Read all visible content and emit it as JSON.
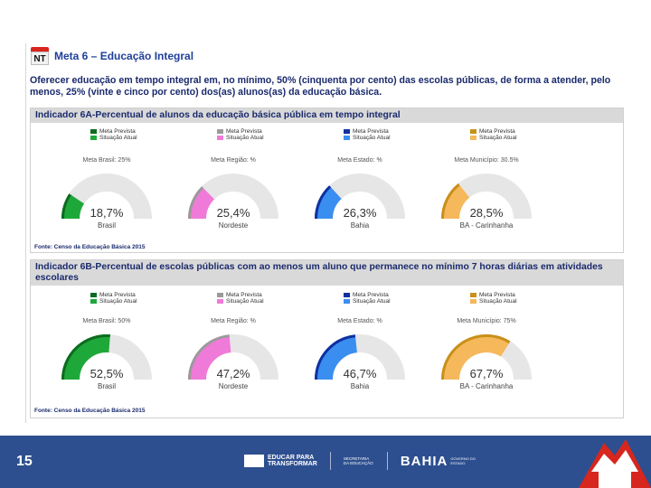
{
  "slide": {
    "logo_text": "NT",
    "title": "Meta 6 – Educação Integral",
    "goal_text": "Oferecer educação em tempo integral em, no mínimo, 50% (cinquenta por cento) das escolas públicas, de forma a atender, pelo menos, 25% (vinte e cinco por cento) dos(as) alunos(as) da educação básica."
  },
  "legend_labels": {
    "meta": "Meta Prevista",
    "situacao": "Situação Atual"
  },
  "indicator_a": {
    "title": "Indicador 6A-Percentual de alunos da educação básica pública em tempo integral",
    "source": "Fonte: Censo da Educação Básica 2015",
    "gauges": [
      {
        "target": "Meta Brasil: 25%",
        "value_text": "18,7%",
        "value": 18.7,
        "label": "Brasil",
        "color": "#1fa83a",
        "meta_color": "#0d6b1f"
      },
      {
        "target": "Meta Região: %",
        "value_text": "25,4%",
        "value": 25.4,
        "label": "Nordeste",
        "color": "#f07ad8",
        "meta_color": "#9a9a9a"
      },
      {
        "target": "Meta Estado: %",
        "value_text": "26,3%",
        "value": 26.3,
        "label": "Bahia",
        "color": "#3a8ef0",
        "meta_color": "#1030a0"
      },
      {
        "target": "Meta Município: 30.5%",
        "value_text": "28,5%",
        "value": 28.5,
        "label": "BA - Carinhanha",
        "color": "#f5b85a",
        "meta_color": "#c8901a"
      }
    ]
  },
  "indicator_b": {
    "title": "Indicador 6B-Percentual de escolas públicas com ao menos um aluno que permanece no mínimo 7 horas diárias em atividades escolares",
    "source": "Fonte: Censo da Educação Básica 2015",
    "gauges": [
      {
        "target": "Meta Brasil: 50%",
        "value_text": "52,5%",
        "value": 52.5,
        "label": "Brasil",
        "color": "#1fa83a",
        "meta_color": "#0d6b1f"
      },
      {
        "target": "Meta Região: %",
        "value_text": "47,2%",
        "value": 47.2,
        "label": "Nordeste",
        "color": "#f07ad8",
        "meta_color": "#9a9a9a"
      },
      {
        "target": "Meta Estado: %",
        "value_text": "46,7%",
        "value": 46.7,
        "label": "Bahia",
        "color": "#3a8ef0",
        "meta_color": "#1030a0"
      },
      {
        "target": "Meta Município: 75%",
        "value_text": "67,7%",
        "value": 67.7,
        "label": "BA - Carinhanha",
        "color": "#f5b85a",
        "meta_color": "#c8901a"
      }
    ]
  },
  "footer": {
    "page_number": "15",
    "logo1_line1": "EDUCAR PARA",
    "logo1_line2": "TRANSFORMAR",
    "logo2": "SECRETARIA DA EDUCAÇÃO",
    "bahia": "BAHIA",
    "bahia_sub": "GOVERNO DO ESTADO"
  }
}
